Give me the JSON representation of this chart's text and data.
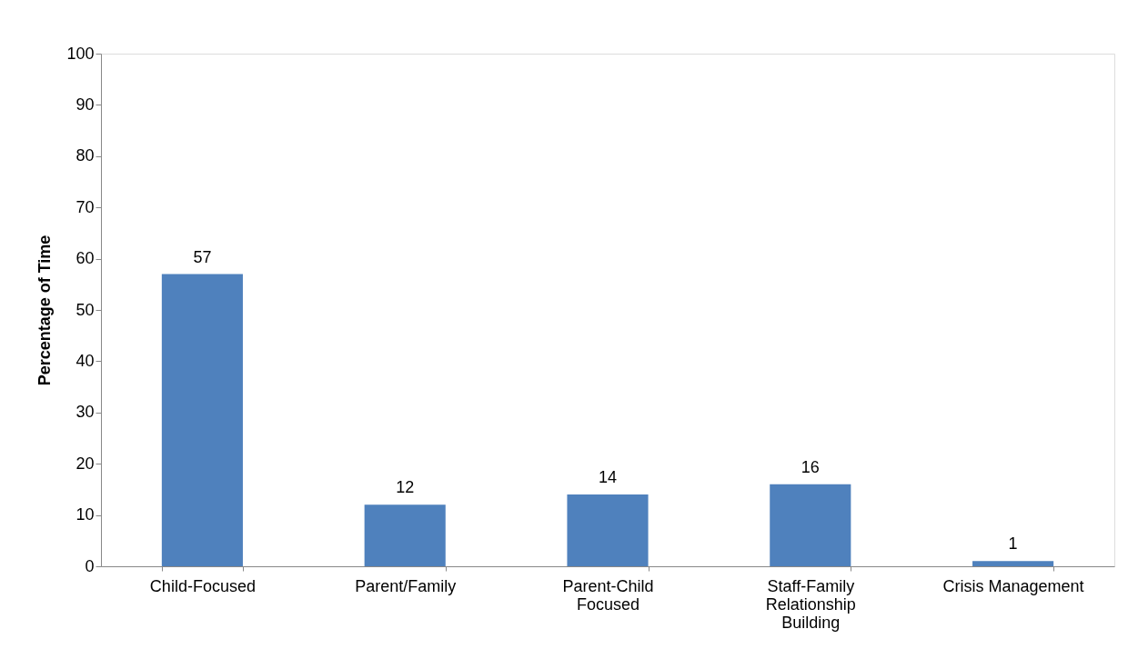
{
  "chart_data": {
    "type": "bar",
    "ylabel": "Percentage of Time",
    "categories": [
      "Child-Focused",
      "Parent/Family",
      "Parent-Child\nFocused",
      "Staff-Family\nRelationship\nBuilding",
      "Crisis Management"
    ],
    "values": [
      57,
      12,
      14,
      16,
      1
    ],
    "color": "#4f81bd",
    "ylim": [
      0,
      100
    ],
    "yticks": [
      0,
      10,
      20,
      30,
      40,
      50,
      60,
      70,
      80,
      90,
      100
    ],
    "data_labels": true,
    "grid": false
  }
}
